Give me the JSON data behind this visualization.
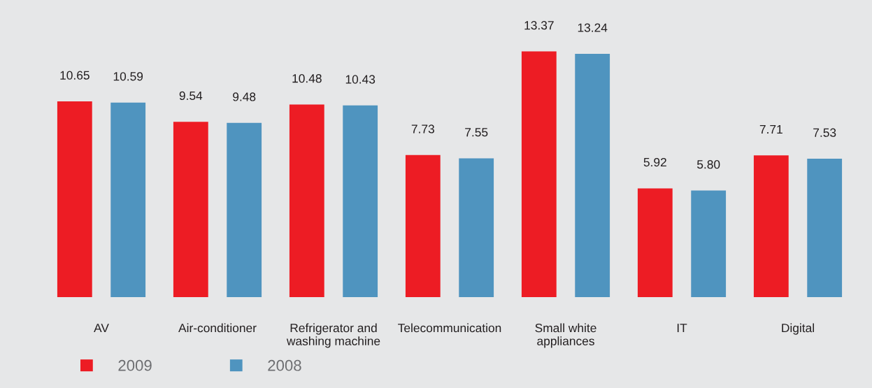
{
  "chart_data": {
    "type": "bar",
    "categories": [
      "AV",
      "Air-conditioner",
      "Refrigerator and\nwashing machine",
      "Telecommunication",
      "Small white\nappliances",
      "IT",
      "Digital"
    ],
    "series": [
      {
        "name": "2009",
        "color": "#ed1c24",
        "values": [
          10.65,
          9.54,
          10.48,
          7.73,
          13.37,
          5.92,
          7.71
        ],
        "value_labels": [
          "10.65",
          "9.54",
          "10.48",
          "7.73",
          "13.37",
          "5.92",
          "7.71"
        ]
      },
      {
        "name": "2008",
        "color": "#4f94bf",
        "values": [
          10.59,
          9.48,
          10.43,
          7.55,
          13.24,
          5.8,
          7.53
        ],
        "value_labels": [
          "10.59",
          "9.48",
          "10.43",
          "7.55",
          "13.24",
          "5.80",
          "7.53"
        ]
      }
    ],
    "legend": "bottom",
    "tick_labels": "x"
  }
}
